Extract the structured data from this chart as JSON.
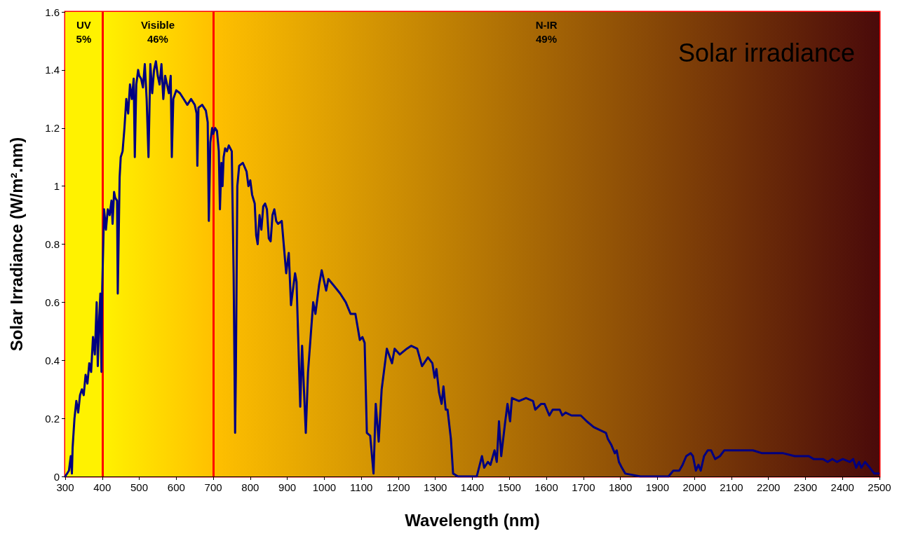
{
  "chart_data": {
    "type": "line",
    "title": "Solar irradiance",
    "xlabel": "Wavelength (nm)",
    "ylabel": "Solar Irradiance (W/m².nm)",
    "xlim": [
      300,
      2500
    ],
    "xticks": [
      300,
      400,
      500,
      600,
      700,
      800,
      900,
      1000,
      1100,
      1200,
      1300,
      1400,
      1500,
      1600,
      1700,
      1800,
      1900,
      2000,
      2100,
      2200,
      2300,
      2400,
      2500
    ],
    "ylim": [
      0,
      1.6
    ],
    "yticks": [
      0,
      0.2,
      0.4,
      0.6,
      0.8,
      1,
      1.2,
      1.4,
      1.6
    ],
    "marker": "none",
    "line_style": "solid",
    "ref_lines": [
      {
        "axis": "x",
        "value": 400,
        "color": "#ff0000"
      },
      {
        "axis": "x",
        "value": 700,
        "color": "#ff0000"
      }
    ],
    "bands": [
      {
        "axis": "x",
        "from": 300,
        "to": 400,
        "label": "UV\n5%",
        "color": "#fff200"
      },
      {
        "axis": "x",
        "from": 400,
        "to": 700,
        "label": "Visible\n46%",
        "color": "#ffc000"
      },
      {
        "axis": "x",
        "from": 700,
        "to": 2500,
        "label": "N-IR\n49%",
        "color": "#4a0a0a"
      }
    ],
    "series": [
      {
        "color": "#000080",
        "x": [
          300,
          310,
          315,
          318,
          320,
          325,
          330,
          335,
          340,
          345,
          350,
          355,
          360,
          365,
          370,
          375,
          380,
          385,
          388,
          392,
          395,
          398,
          400,
          405,
          410,
          415,
          420,
          425,
          428,
          432,
          435,
          440,
          442,
          447,
          450,
          455,
          460,
          465,
          470,
          475,
          480,
          485,
          488,
          492,
          497,
          500,
          505,
          510,
          515,
          520,
          525,
          530,
          535,
          540,
          545,
          550,
          555,
          560,
          565,
          570,
          575,
          580,
          585,
          588,
          592,
          600,
          610,
          620,
          630,
          640,
          650,
          655,
          657,
          660,
          670,
          680,
          685,
          688,
          692,
          697,
          700,
          705,
          710,
          715,
          718,
          722,
          725,
          728,
          732,
          737,
          742,
          750,
          755,
          759,
          761,
          765,
          770,
          780,
          790,
          795,
          800,
          805,
          812,
          816,
          820,
          825,
          830,
          835,
          840,
          845,
          850,
          855,
          860,
          865,
          870,
          875,
          885,
          897,
          904,
          910,
          921,
          925,
          935,
          940,
          950,
          956,
          963,
          970,
          976,
          986,
          993,
          1005,
          1011,
          1024,
          1043,
          1058,
          1071,
          1084,
          1096,
          1103,
          1109,
          1115,
          1124,
          1133,
          1139,
          1147,
          1155,
          1169,
          1183,
          1190,
          1204,
          1223,
          1235,
          1251,
          1264,
          1280,
          1292,
          1298,
          1303,
          1310,
          1317,
          1322,
          1328,
          1333,
          1342,
          1348,
          1361,
          1412,
          1426,
          1432,
          1442,
          1449,
          1460,
          1466,
          1472,
          1478,
          1488,
          1495,
          1502,
          1507,
          1526,
          1545,
          1564,
          1570,
          1586,
          1595,
          1608,
          1617,
          1636,
          1643,
          1652,
          1668,
          1677,
          1693,
          1709,
          1728,
          1744,
          1761,
          1766,
          1775,
          1785,
          1790,
          1796,
          1804,
          1813,
          1854,
          1930,
          1943,
          1959,
          1968,
          1978,
          1990,
          1996,
          2004,
          2011,
          2017,
          2026,
          2036,
          2045,
          2056,
          2069,
          2081,
          2106,
          2132,
          2158,
          2183,
          2208,
          2240,
          2271,
          2309,
          2322,
          2347,
          2360,
          2373,
          2385,
          2401,
          2420,
          2429,
          2437,
          2445,
          2451,
          2461,
          2474,
          2486,
          2498
        ],
        "values": [
          0,
          0.02,
          0.07,
          0.01,
          0.1,
          0.2,
          0.26,
          0.22,
          0.28,
          0.3,
          0.28,
          0.35,
          0.32,
          0.39,
          0.36,
          0.48,
          0.42,
          0.6,
          0.38,
          0.55,
          0.63,
          0.36,
          0.65,
          0.92,
          0.85,
          0.92,
          0.9,
          0.95,
          0.87,
          0.98,
          0.96,
          0.95,
          0.63,
          1.03,
          1.1,
          1.12,
          1.2,
          1.3,
          1.25,
          1.35,
          1.3,
          1.37,
          1.1,
          1.35,
          1.4,
          1.38,
          1.37,
          1.34,
          1.42,
          1.3,
          1.1,
          1.42,
          1.32,
          1.4,
          1.43,
          1.38,
          1.35,
          1.42,
          1.3,
          1.38,
          1.35,
          1.32,
          1.38,
          1.1,
          1.3,
          1.33,
          1.32,
          1.3,
          1.28,
          1.3,
          1.28,
          1.25,
          1.07,
          1.27,
          1.28,
          1.26,
          1.22,
          0.88,
          1.15,
          1.2,
          1.18,
          1.2,
          1.19,
          1.12,
          0.92,
          1.08,
          1,
          1.1,
          1.13,
          1.12,
          1.14,
          1.12,
          0.7,
          0.15,
          0.35,
          1,
          1.07,
          1.08,
          1.05,
          1,
          1.02,
          0.97,
          0.94,
          0.83,
          0.8,
          0.9,
          0.85,
          0.93,
          0.94,
          0.92,
          0.82,
          0.81,
          0.9,
          0.92,
          0.88,
          0.87,
          0.88,
          0.7,
          0.77,
          0.59,
          0.7,
          0.67,
          0.24,
          0.45,
          0.15,
          0.36,
          0.48,
          0.6,
          0.56,
          0.66,
          0.71,
          0.64,
          0.68,
          0.66,
          0.63,
          0.6,
          0.56,
          0.56,
          0.47,
          0.48,
          0.46,
          0.15,
          0.14,
          0.01,
          0.25,
          0.12,
          0.3,
          0.44,
          0.39,
          0.44,
          0.42,
          0.44,
          0.45,
          0.44,
          0.38,
          0.41,
          0.39,
          0.34,
          0.37,
          0.29,
          0.25,
          0.31,
          0.23,
          0.23,
          0.13,
          0.01,
          0,
          0,
          0.07,
          0.03,
          0.05,
          0.04,
          0.09,
          0.05,
          0.19,
          0.07,
          0.18,
          0.25,
          0.19,
          0.27,
          0.26,
          0.27,
          0.26,
          0.23,
          0.25,
          0.25,
          0.21,
          0.23,
          0.23,
          0.21,
          0.22,
          0.21,
          0.21,
          0.21,
          0.19,
          0.17,
          0.16,
          0.15,
          0.13,
          0.11,
          0.08,
          0.09,
          0.05,
          0.03,
          0.01,
          0,
          0,
          0.02,
          0.02,
          0.04,
          0.07,
          0.08,
          0.07,
          0.02,
          0.04,
          0.02,
          0.07,
          0.09,
          0.09,
          0.06,
          0.07,
          0.09,
          0.09,
          0.09,
          0.09,
          0.08,
          0.08,
          0.08,
          0.07,
          0.07,
          0.06,
          0.06,
          0.05,
          0.06,
          0.05,
          0.06,
          0.05,
          0.06,
          0.03,
          0.05,
          0.03,
          0.05,
          0.03,
          0.01,
          0.01
        ]
      }
    ]
  }
}
